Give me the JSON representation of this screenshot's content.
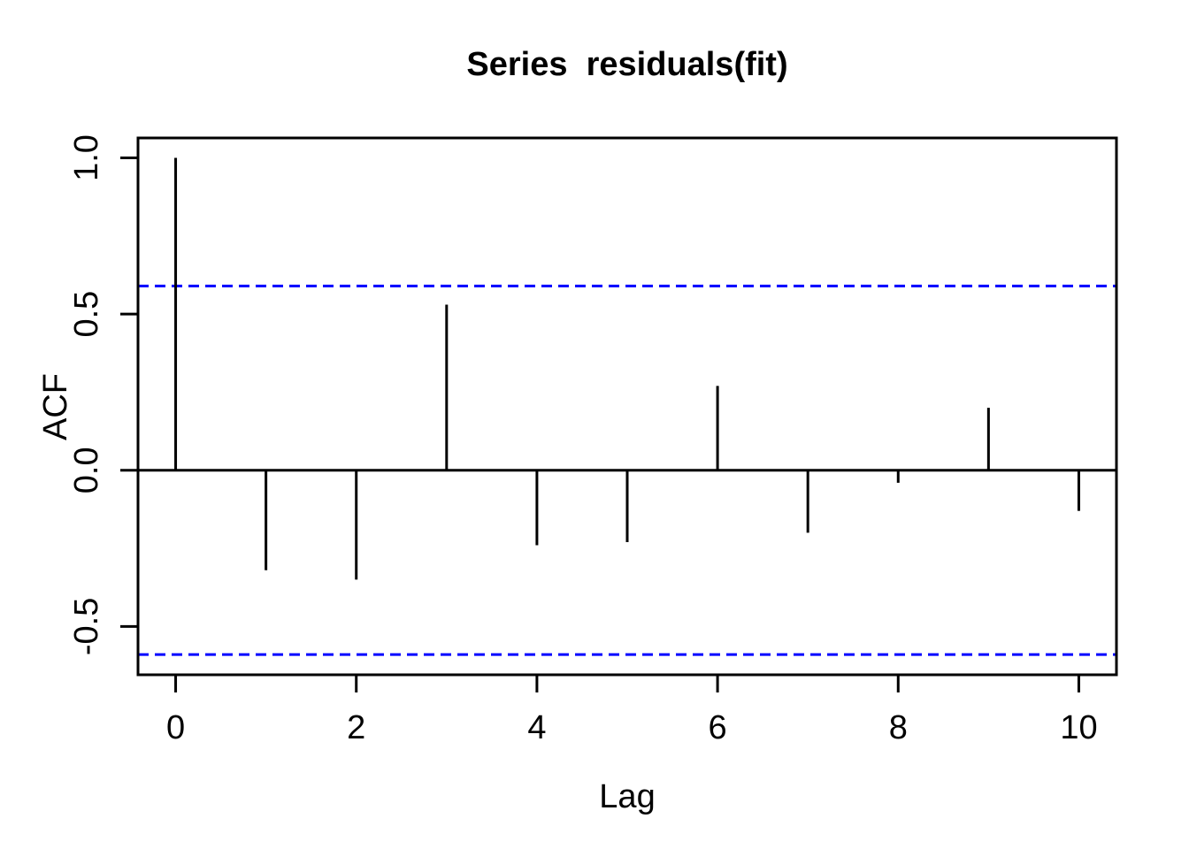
{
  "title": "Series  residuals(fit)",
  "colors": {
    "foreground": "#000000",
    "confidence_line": "#0000FF",
    "background": "#FFFFFF"
  },
  "chart_data": {
    "type": "bar",
    "bar_style": "stem",
    "title": "Series  residuals(fit)",
    "xlabel": "Lag",
    "ylabel": "ACF",
    "x": [
      0,
      1,
      2,
      3,
      4,
      5,
      6,
      7,
      8,
      9,
      10
    ],
    "values": [
      1.0,
      -0.32,
      -0.35,
      0.53,
      -0.24,
      -0.23,
      0.27,
      -0.2,
      -0.04,
      0.2,
      -0.13
    ],
    "confidence_bounds": [
      0.59,
      -0.59
    ],
    "confidence_line_style": "dashed",
    "zero_line": true,
    "grid": false,
    "legend": null,
    "xlim": [
      0,
      10
    ],
    "ylim": [
      -0.59,
      1.0
    ],
    "x_ticks": [
      0,
      2,
      4,
      6,
      8,
      10
    ],
    "x_tick_labels": [
      "0",
      "2",
      "4",
      "6",
      "8",
      "10"
    ],
    "y_ticks": [
      1.0,
      0.5,
      0.0,
      -0.5
    ],
    "y_tick_labels": [
      "1.0",
      "0.5",
      "0.0",
      "-0.5"
    ]
  }
}
